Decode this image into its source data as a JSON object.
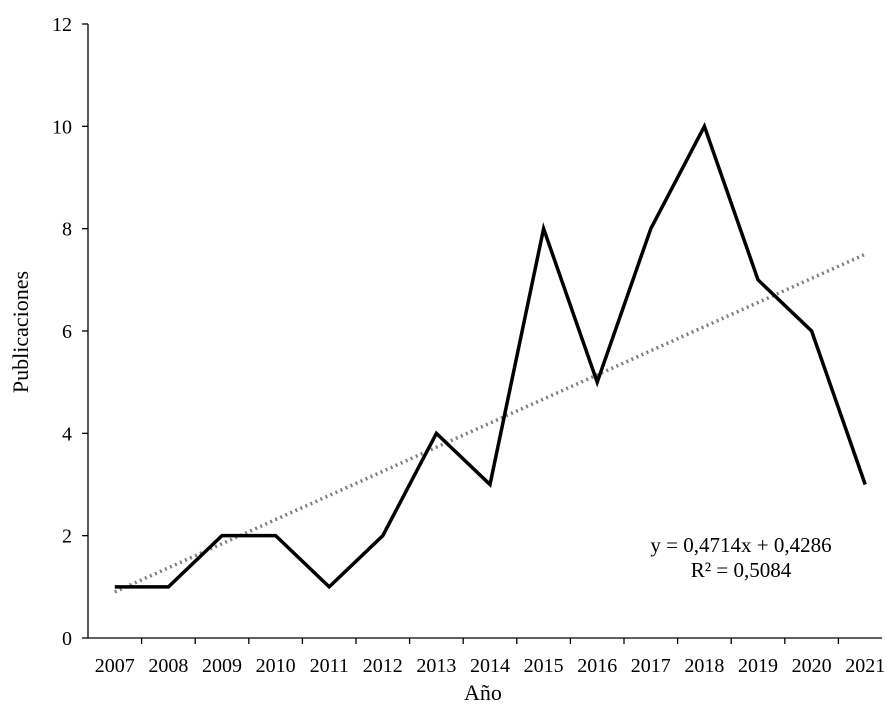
{
  "chart_data": {
    "type": "line",
    "title": "",
    "xlabel": "Año",
    "ylabel": "Publicaciones",
    "categories": [
      "2007",
      "2008",
      "2009",
      "2010",
      "2011",
      "2012",
      "2013",
      "2014",
      "2015",
      "2016",
      "2017",
      "2018",
      "2019",
      "2020",
      "2021"
    ],
    "series": [
      {
        "values": [
          1,
          1,
          2,
          2,
          1,
          2,
          4,
          3,
          8,
          5,
          8,
          10,
          7,
          6,
          3
        ],
        "color": "#000000",
        "style": "solid"
      }
    ],
    "trendline": {
      "type": "linear",
      "slope": 0.4714,
      "intercept": 0.4286,
      "color": "#7f7f7f",
      "style": "dotted",
      "equation_label": "y = 0,4714x + 0,4286",
      "r2_label": "R² = 0,5084"
    },
    "ylim": [
      0,
      12
    ],
    "yticks": [
      "0",
      "2",
      "4",
      "6",
      "8",
      "10",
      "12"
    ],
    "grid": false,
    "legend": "none"
  }
}
